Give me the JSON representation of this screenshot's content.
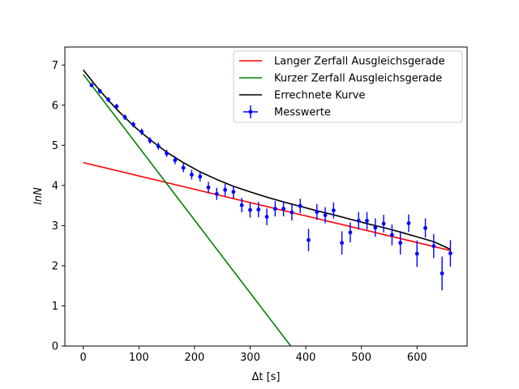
{
  "chart_data": {
    "type": "line",
    "title": "",
    "xlabel": "Δt [s]",
    "ylabel": "lnN",
    "xlim": [
      -33,
      690
    ],
    "ylim": [
      0,
      7.45
    ],
    "xticks": [
      0,
      100,
      200,
      300,
      400,
      500,
      600
    ],
    "yticks": [
      0,
      1,
      2,
      3,
      4,
      5,
      6,
      7
    ],
    "grid": false,
    "legend_position": "top-right",
    "series": [
      {
        "name": "Langer Zerfall Ausgleichsgerade",
        "kind": "line",
        "color": "#ff0000",
        "x": [
          0,
          660
        ],
        "y": [
          4.57,
          2.38
        ]
      },
      {
        "name": "Kurzer Zerfall Ausgleichsgerade",
        "kind": "line",
        "color": "#008000",
        "x": [
          0,
          373
        ],
        "y": [
          6.77,
          0
        ]
      },
      {
        "name": "Errechnete Kurve",
        "kind": "line",
        "color": "#000000",
        "x": [
          0,
          30,
          60,
          90,
          120,
          150,
          180,
          210,
          240,
          270,
          300,
          330,
          360,
          390,
          420,
          450,
          480,
          510,
          540,
          570,
          600,
          630,
          660
        ],
        "y": [
          6.88,
          6.36,
          5.9,
          5.49,
          5.14,
          4.83,
          4.57,
          4.34,
          4.15,
          3.98,
          3.84,
          3.71,
          3.59,
          3.48,
          3.37,
          3.27,
          3.16,
          3.05,
          2.95,
          2.84,
          2.72,
          2.6,
          2.41
        ]
      },
      {
        "name": "Messwerte",
        "kind": "errorbar",
        "color": "#0000ff",
        "x": [
          15,
          30,
          45,
          60,
          75,
          90,
          105,
          120,
          135,
          150,
          165,
          180,
          195,
          210,
          225,
          240,
          255,
          270,
          285,
          300,
          315,
          330,
          345,
          360,
          375,
          390,
          405,
          420,
          435,
          450,
          465,
          480,
          495,
          510,
          525,
          540,
          555,
          570,
          585,
          600,
          615,
          630,
          645,
          660
        ],
        "y": [
          6.5,
          6.35,
          6.14,
          5.97,
          5.7,
          5.52,
          5.34,
          5.12,
          4.98,
          4.8,
          4.63,
          4.44,
          4.27,
          4.22,
          3.95,
          3.79,
          3.89,
          3.84,
          3.51,
          3.39,
          3.4,
          3.22,
          3.42,
          3.42,
          3.33,
          3.49,
          2.64,
          3.34,
          3.26,
          3.38,
          2.57,
          2.83,
          3.12,
          3.12,
          2.95,
          3.05,
          2.77,
          2.57,
          3.06,
          2.3,
          2.94,
          2.49,
          1.81,
          2.31
        ],
        "yerr": [
          0.05,
          0.06,
          0.06,
          0.06,
          0.07,
          0.07,
          0.08,
          0.08,
          0.09,
          0.09,
          0.1,
          0.11,
          0.12,
          0.12,
          0.14,
          0.15,
          0.15,
          0.16,
          0.18,
          0.19,
          0.19,
          0.21,
          0.19,
          0.19,
          0.2,
          0.18,
          0.28,
          0.2,
          0.2,
          0.2,
          0.29,
          0.25,
          0.22,
          0.22,
          0.23,
          0.22,
          0.26,
          0.29,
          0.22,
          0.33,
          0.24,
          0.3,
          0.42,
          0.33
        ]
      }
    ]
  }
}
